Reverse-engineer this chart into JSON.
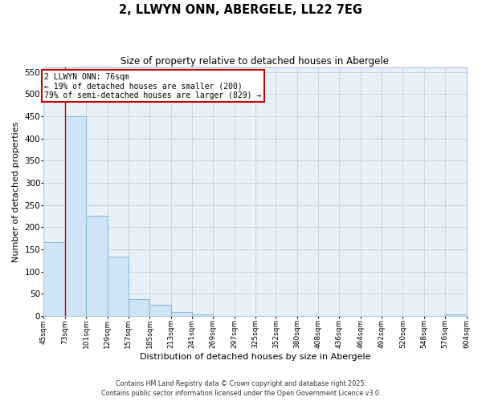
{
  "title": "2, LLWYN ONN, ABERGELE, LL22 7EG",
  "subtitle": "Size of property relative to detached houses in Abergele",
  "xlabel": "Distribution of detached houses by size in Abergele",
  "ylabel": "Number of detached properties",
  "bar_color": "#d0e4f7",
  "bar_edge_color": "#7bafd4",
  "grid_color": "#c8d8e8",
  "bg_color": "#e8f0f8",
  "annotation_box_color": "#cc0000",
  "vline_color": "#cc0000",
  "vline_x": 73,
  "annotation_text": "2 LLWYN ONN: 76sqm\n← 19% of detached houses are smaller (200)\n79% of semi-detached houses are larger (829) →",
  "bin_edges": [
    45,
    73,
    101,
    129,
    157,
    185,
    213,
    241,
    269,
    297,
    325,
    352,
    380,
    408,
    436,
    464,
    492,
    520,
    548,
    576,
    604
  ],
  "bar_heights": [
    167,
    450,
    225,
    134,
    38,
    26,
    9,
    4,
    0,
    0,
    0,
    0,
    0,
    0,
    0,
    0,
    0,
    0,
    0,
    3
  ],
  "ylim": [
    0,
    560
  ],
  "yticks": [
    0,
    50,
    100,
    150,
    200,
    250,
    300,
    350,
    400,
    450,
    500,
    550
  ],
  "footer1": "Contains HM Land Registry data © Crown copyright and database right 2025.",
  "footer2": "Contains public sector information licensed under the Open Government Licence v3.0."
}
